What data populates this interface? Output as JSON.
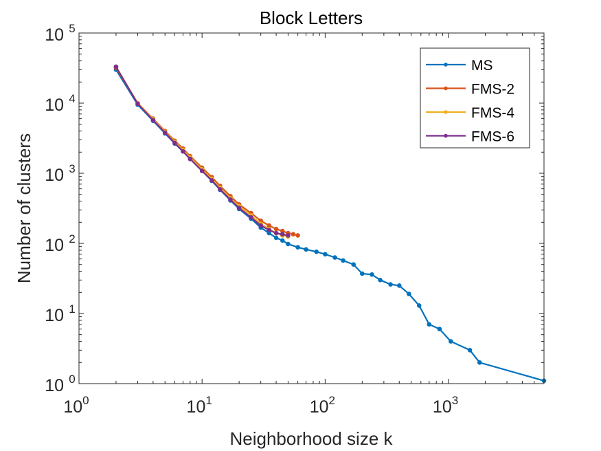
{
  "chart_data": {
    "type": "line",
    "title": "Block Letters",
    "xlabel": "Neighborhood size k",
    "ylabel": "Number of clusters",
    "xscale": "log",
    "yscale": "log",
    "xlim": [
      1,
      6000
    ],
    "ylim": [
      1,
      100000
    ],
    "x_ticks": [
      {
        "value": 1,
        "base": "10",
        "exp": "0"
      },
      {
        "value": 10,
        "base": "10",
        "exp": "1"
      },
      {
        "value": 100,
        "base": "10",
        "exp": "2"
      },
      {
        "value": 1000,
        "base": "10",
        "exp": "3"
      }
    ],
    "y_ticks": [
      {
        "value": 1,
        "base": "10",
        "exp": "0"
      },
      {
        "value": 10,
        "base": "10",
        "exp": "1"
      },
      {
        "value": 100,
        "base": "10",
        "exp": "2"
      },
      {
        "value": 1000,
        "base": "10",
        "exp": "3"
      },
      {
        "value": 10000,
        "base": "10",
        "exp": "4"
      },
      {
        "value": 100000,
        "base": "10",
        "exp": "5"
      }
    ],
    "legend_position": "top-right",
    "series": [
      {
        "name": "MS",
        "color": "#0072BD",
        "x": [
          2,
          3,
          4,
          5,
          6,
          7,
          8,
          10,
          12,
          14,
          17,
          20,
          25,
          30,
          35,
          40,
          45,
          50,
          60,
          70,
          85,
          100,
          120,
          140,
          170,
          200,
          240,
          280,
          340,
          400,
          480,
          580,
          700,
          850,
          1050,
          1500,
          1800,
          6000
        ],
        "y": [
          30000,
          9500,
          5600,
          3700,
          2650,
          2050,
          1600,
          1080,
          780,
          580,
          410,
          310,
          225,
          168,
          140,
          120,
          110,
          98,
          88,
          82,
          76,
          70,
          63,
          57,
          50,
          37,
          36,
          30,
          26,
          25,
          19,
          13,
          7,
          6,
          4,
          3,
          2,
          1.1
        ]
      },
      {
        "name": "FMS-2",
        "color": "#D95319",
        "x": [
          2,
          3,
          4,
          5,
          6,
          7,
          8,
          10,
          12,
          14,
          17,
          20,
          25,
          30,
          35,
          40,
          45,
          50,
          55,
          60
        ],
        "y": [
          32000,
          10000,
          6000,
          4000,
          2900,
          2250,
          1750,
          1200,
          880,
          660,
          470,
          360,
          270,
          210,
          180,
          160,
          150,
          140,
          135,
          130
        ]
      },
      {
        "name": "FMS-4",
        "color": "#EDB120",
        "x": [
          2,
          3,
          4,
          5,
          6,
          7,
          8,
          10,
          12,
          14,
          17,
          20,
          25,
          30,
          35,
          40,
          45,
          50
        ],
        "y": [
          33000,
          10000,
          5900,
          3900,
          2800,
          2150,
          1680,
          1140,
          830,
          620,
          440,
          340,
          250,
          190,
          160,
          140,
          130,
          125
        ]
      },
      {
        "name": "FMS-6",
        "color": "#7E2F8E",
        "x": [
          2,
          3,
          4,
          5,
          6,
          7,
          8,
          10,
          12,
          14,
          17,
          20,
          25,
          30,
          35,
          40,
          45,
          50
        ],
        "y": [
          33000,
          9800,
          5700,
          3800,
          2700,
          2050,
          1600,
          1080,
          790,
          590,
          420,
          320,
          235,
          180,
          155,
          140,
          135,
          130
        ]
      }
    ]
  }
}
